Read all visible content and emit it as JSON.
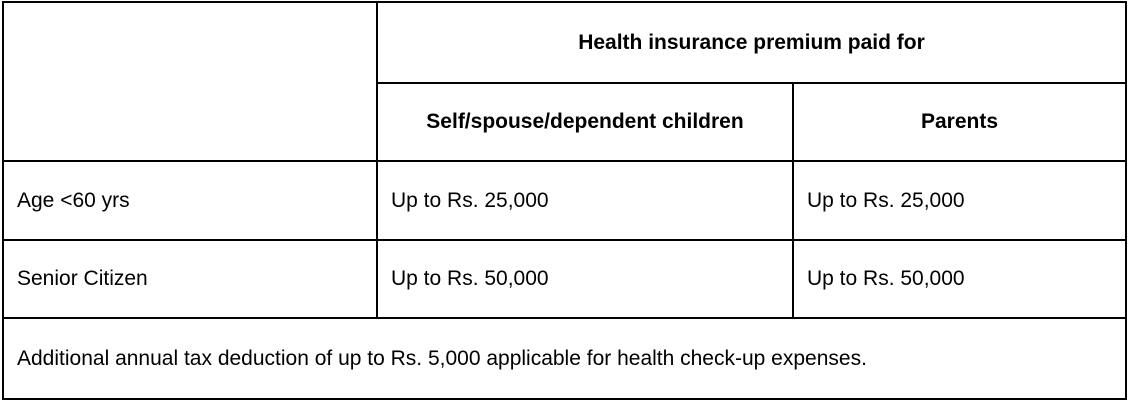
{
  "table": {
    "group_header": "Health insurance premium paid for",
    "columns": [
      "Self/spouse/dependent children",
      "Parents"
    ],
    "rows": [
      {
        "label": "Age <60 yrs",
        "self": "Up to Rs. 25,000",
        "parents": "Up to Rs. 25,000"
      },
      {
        "label": "Senior Citizen",
        "self": "Up to Rs. 50,000",
        "parents": "Up to Rs. 50,000"
      }
    ],
    "footnote": "Additional annual tax deduction of up to Rs. 5,000 applicable for health check-up expenses."
  }
}
